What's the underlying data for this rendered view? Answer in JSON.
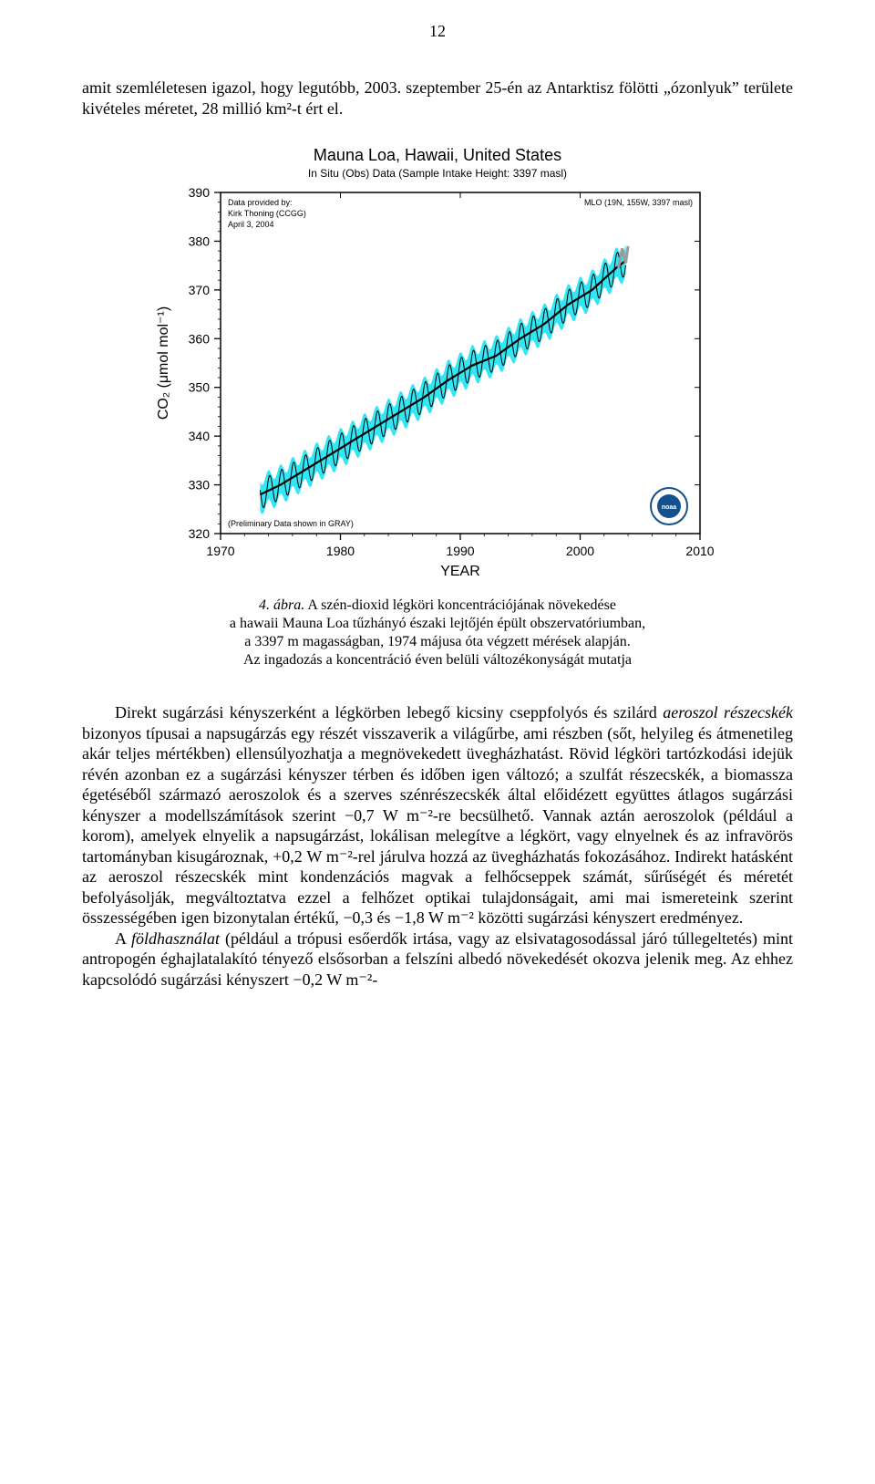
{
  "page_number": "12",
  "intro": "amit szemléletesen igazol, hogy legutóbb, 2003. szeptember 25-én az Antarktisz fölötti „ózonlyuk” területe kivételes méretet, 28 millió km²-t ért el.",
  "chart": {
    "type": "line",
    "title": "Mauna Loa, Hawaii, United States",
    "subtitle": "In Situ (Obs) Data (Sample Intake Height: 3397 masl)",
    "provider_lines": [
      "Data provided by:",
      "Kirk Thoning (CCGG)",
      "April 3, 2004"
    ],
    "station_label": "MLO (19N, 155W, 3397 masl)",
    "preliminary_note": "(Preliminary Data shown in GRAY)",
    "x_label": "YEAR",
    "y_label": "CO₂ (μmol mol⁻¹)",
    "xlim": [
      1970,
      2010
    ],
    "ylim": [
      320,
      390
    ],
    "xticks": [
      1970,
      1980,
      1990,
      2000,
      2010
    ],
    "yticks": [
      320,
      330,
      340,
      350,
      360,
      370,
      380,
      390
    ],
    "band_color": "#33e6f4",
    "trend_color": "#000000",
    "prelim_color": "#9b9b9b",
    "background_color": "#ffffff",
    "axis_color": "#000000",
    "tick_fontsize": 14,
    "label_fontsize": 14,
    "title_fontsize": 18,
    "subtitle_fontsize": 12,
    "trend_points": [
      [
        1973.3,
        328
      ],
      [
        1975,
        330
      ],
      [
        1977,
        333
      ],
      [
        1979,
        336
      ],
      [
        1981,
        339
      ],
      [
        1983,
        342
      ],
      [
        1985,
        345
      ],
      [
        1987,
        348
      ],
      [
        1989,
        351.5
      ],
      [
        1991,
        354.5
      ],
      [
        1993,
        356.5
      ],
      [
        1995,
        360
      ],
      [
        1997,
        363
      ],
      [
        1999,
        367
      ],
      [
        2001,
        370
      ],
      [
        2003,
        374.5
      ],
      [
        2003.8,
        376
      ]
    ],
    "band_half_width": 3.0,
    "season_amplitude": 3.0,
    "prelim_points": [
      [
        2003.2,
        374.5
      ],
      [
        2003.5,
        378.5
      ],
      [
        2003.8,
        375.5
      ],
      [
        2004.0,
        379
      ]
    ]
  },
  "caption": {
    "label": "4. ábra.",
    "line1": "A szén-dioxid légköri koncentrációjának növekedése",
    "line2": "a hawaii Mauna Loa tűzhányó északi lejtőjén épült obszervatóriumban,",
    "line3": "a 3397 m magasságban, 1974 májusa óta végzett mérések alapján.",
    "line4": "Az ingadozás a koncentráció éven belüli változékonyságát mutatja"
  },
  "para1a": "Direkt sugárzási kényszerként a légkörben lebegő kicsiny cseppfolyós és szilárd ",
  "para1_em1": "aeroszol részecskék",
  "para1b": " bizonyos típusai a napsugárzás egy részét visszaverik a világűrbe, ami részben (sőt, helyileg és átmenetileg akár teljes mértékben) ellensúlyozhatja a megnövekedett üvegházhatást. Rövid légköri tartózkodási idejük révén azonban ez a sugárzási kényszer térben és időben igen változó; a szulfát részecskék, a biomassza égetéséből származó aeroszolok és a szerves szénrészecskék által előidézett együttes átlagos sugárzási kényszer a modellszámítások szerint −0,7 W m⁻²-re becsülhető. Vannak aztán aeroszolok (például a korom), amelyek elnyelik a napsugárzást, lokálisan melegítve a légkört, vagy elnyelnek és az infravörös tartományban kisugároznak, +0,2 W m⁻²-rel járulva hozzá az üvegházhatás fokozásához. Indirekt hatásként az aeroszol részecskék mint kondenzációs magvak a felhőcseppek számát, sűrűségét és méretét befolyásolják, megváltoztatva ezzel a felhőzet optikai tulajdonságait, ami mai ismereteink szerint összességében igen bizonytalan értékű, −0,3 és −1,8 W m⁻² közötti sugárzási kényszert eredményez.",
  "para2a": "A ",
  "para2_em1": "földhasználat",
  "para2b": " (például a trópusi esőerdők irtása, vagy az elsivatagosodással járó túllegeltetés) mint antropogén éghajlatalakító tényező elsősorban a felszíni albedó növekedését okozva jelenik meg. Az ehhez kapcsolódó sugárzási kényszert −0,2 W m⁻²-"
}
